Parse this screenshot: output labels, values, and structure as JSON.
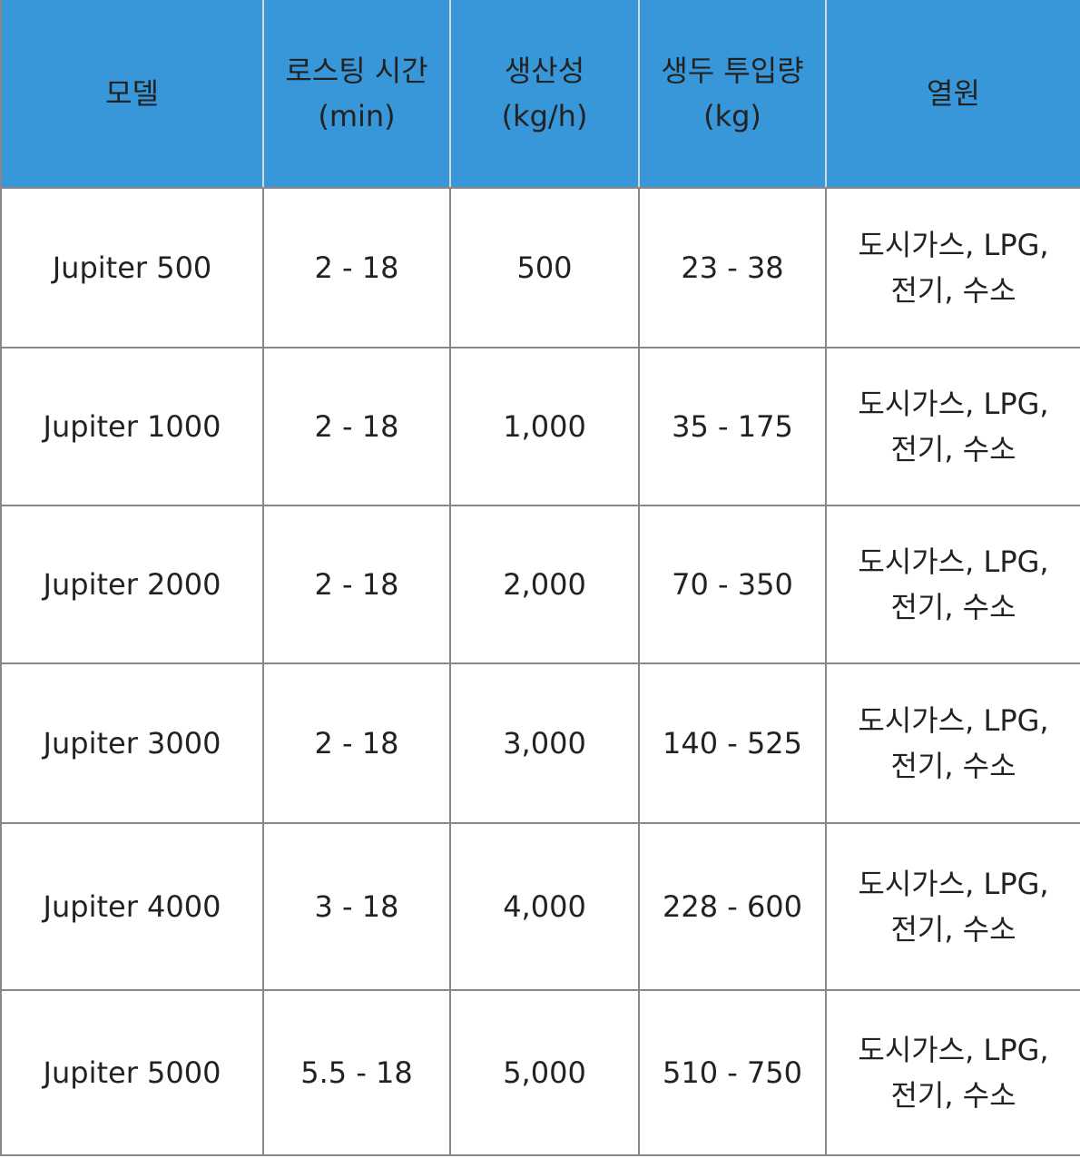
{
  "table": {
    "header_color": "#3797d9",
    "headers": [
      {
        "line1": "모델",
        "line2": ""
      },
      {
        "line1": "로스팅 시간",
        "line2": "(min)"
      },
      {
        "line1": "생산성",
        "line2": "(kg/h)"
      },
      {
        "line1": "생두 투입량",
        "line2": "(kg)"
      },
      {
        "line1": "열원",
        "line2": ""
      }
    ],
    "rows": [
      {
        "model": "Jupiter 500",
        "roast_time": "2 - 18",
        "capacity": "500",
        "batch": "23 - 38",
        "heat_line1": "도시가스, LPG,",
        "heat_line2": "전기, 수소"
      },
      {
        "model": "Jupiter 1000",
        "roast_time": "2 - 18",
        "capacity": "1,000",
        "batch": "35 - 175",
        "heat_line1": "도시가스, LPG,",
        "heat_line2": "전기, 수소"
      },
      {
        "model": "Jupiter 2000",
        "roast_time": "2 - 18",
        "capacity": "2,000",
        "batch": "70 - 350",
        "heat_line1": "도시가스, LPG,",
        "heat_line2": "전기, 수소"
      },
      {
        "model": "Jupiter 3000",
        "roast_time": "2 - 18",
        "capacity": "3,000",
        "batch": "140 - 525",
        "heat_line1": "도시가스, LPG,",
        "heat_line2": "전기, 수소"
      },
      {
        "model": "Jupiter 4000",
        "roast_time": "3 - 18",
        "capacity": "4,000",
        "batch": "228 - 600",
        "heat_line1": "도시가스, LPG,",
        "heat_line2": "전기, 수소"
      },
      {
        "model": "Jupiter 5000",
        "roast_time": "5.5 - 18",
        "capacity": "5,000",
        "batch": "510 - 750",
        "heat_line1": "도시가스, LPG,",
        "heat_line2": "전기, 수소"
      }
    ]
  }
}
